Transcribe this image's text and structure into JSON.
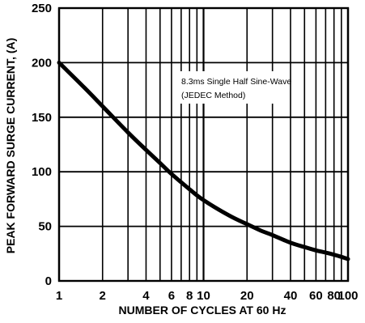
{
  "chart_data": {
    "type": "line",
    "title": "",
    "xlabel": "NUMBER OF CYCLES AT 60 Hz",
    "ylabel": "PEAK FORWARD SURGE CURRENT, (A)",
    "xscale": "log",
    "xlim": [
      1,
      100
    ],
    "ylim": [
      0,
      250
    ],
    "grid": true,
    "x_ticks": [
      1,
      2,
      4,
      6,
      8,
      10,
      20,
      40,
      60,
      80,
      100
    ],
    "x_tick_labels": [
      "1",
      "2",
      "4",
      "6",
      "8",
      "10",
      "20",
      "40",
      "60",
      "80",
      "100"
    ],
    "y_ticks": [
      0,
      50,
      100,
      150,
      200,
      250
    ],
    "y_tick_labels": [
      "0",
      "50",
      "100",
      "150",
      "200",
      "250"
    ],
    "annotations": [
      "8.3ms Single Half Sine-Wave",
      "(JEDEC Method)"
    ],
    "series": [
      {
        "x": [
          1,
          1.5,
          2,
          3,
          4,
          5,
          6,
          8,
          10,
          15,
          20,
          25,
          30,
          40,
          50,
          60,
          70,
          80,
          90,
          100
        ],
        "y": [
          200,
          177,
          160,
          136,
          120,
          108,
          98,
          84,
          74,
          60,
          52,
          46,
          42,
          35,
          31,
          28,
          26,
          24,
          22,
          20
        ]
      }
    ]
  }
}
